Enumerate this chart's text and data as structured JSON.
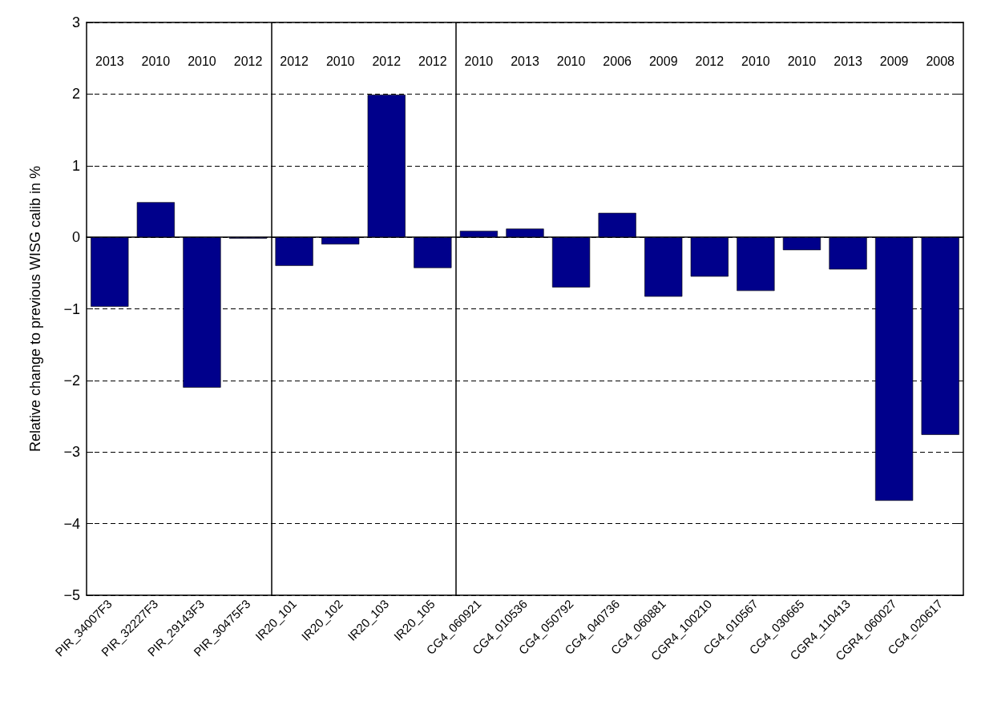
{
  "chart_data": {
    "type": "bar",
    "ylabel": "Relative change to previous WISG calib in %",
    "categories": [
      "PIR_34007F3",
      "PIR_32227F3",
      "PIR_29143F3",
      "PIR_30475F3",
      "IR20_101",
      "IR20_102",
      "IR20_103",
      "IR20_105",
      "CG4_060921",
      "CG4_010536",
      "CG4_050792",
      "CG4_040736",
      "CG4_060881",
      "CGR4_100210",
      "CG4_010567",
      "CG4_030665",
      "CGR4_110413",
      "CGR4_060027",
      "CG4_020617"
    ],
    "values": [
      -0.97,
      0.49,
      -2.1,
      -0.02,
      -0.4,
      -0.1,
      1.99,
      -0.43,
      0.09,
      0.12,
      -0.7,
      0.34,
      -0.83,
      -0.55,
      -0.75,
      -0.18,
      -0.45,
      -3.68,
      -2.76
    ],
    "color": "#00008b",
    "ylim": [
      -5,
      3
    ],
    "yticks": [
      -5,
      -4,
      -3,
      -2,
      -1,
      0,
      1,
      2,
      3
    ],
    "grid": "y",
    "annotations": [
      "2013",
      "2010",
      "2010",
      "2012",
      "2012",
      "2010",
      "2012",
      "2012",
      "2010",
      "2013",
      "2010",
      "2006",
      "2009",
      "2012",
      "2010",
      "2010",
      "2013",
      "2009",
      "2008"
    ]
  }
}
